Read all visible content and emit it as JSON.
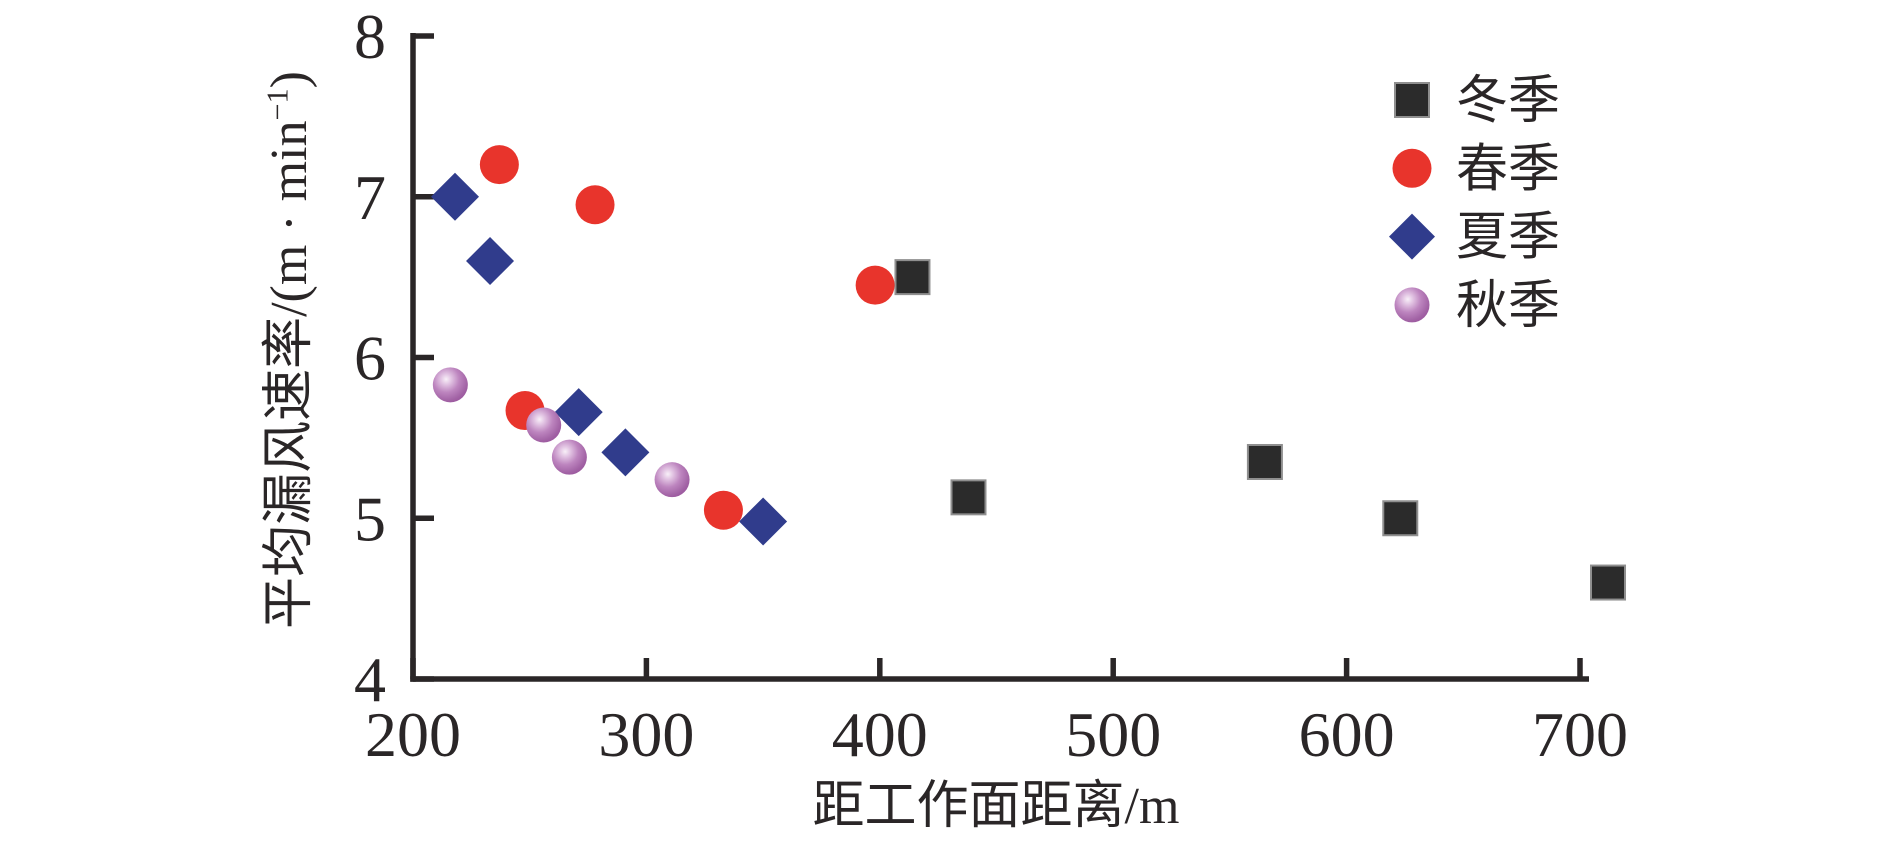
{
  "figure": {
    "background": "#ffffff"
  },
  "chart_data": {
    "type": "scatter",
    "title": "",
    "xlabel": "距工作面距离/m",
    "ylabel": "平均漏风速率/(m · min⁻¹)",
    "ylabel_parts": {
      "pre": "平均漏风速率/(m · min",
      "sup": "−1",
      "post": ")"
    },
    "xlim": [
      200,
      700
    ],
    "ylim": [
      4,
      8
    ],
    "x_ticks": [
      200,
      300,
      400,
      500,
      600,
      700
    ],
    "y_ticks": [
      4,
      5,
      6,
      7,
      8
    ],
    "grid": false,
    "legend_position": "top-right",
    "axis_color": "#2a2627",
    "text_color": "#2a2627",
    "series": [
      {
        "key": "winter",
        "name": "冬季",
        "marker": "square",
        "color": "#2b2b2b",
        "border": "#8f8f8f",
        "points": [
          [
            414,
            6.5
          ],
          [
            438,
            5.13
          ],
          [
            565,
            5.35
          ],
          [
            623,
            5.0
          ],
          [
            712,
            4.6
          ]
        ]
      },
      {
        "key": "spring",
        "name": "春季",
        "marker": "circle",
        "color": "#e8342c",
        "points": [
          [
            237,
            7.2
          ],
          [
            248,
            5.67
          ],
          [
            278,
            6.95
          ],
          [
            333,
            5.05
          ],
          [
            398,
            6.45
          ]
        ]
      },
      {
        "key": "summer",
        "name": "夏季",
        "marker": "diamond",
        "color": "#303c8c",
        "points": [
          [
            218,
            7.0
          ],
          [
            233,
            6.6
          ],
          [
            271,
            5.66
          ],
          [
            291,
            5.41
          ],
          [
            350,
            4.98
          ]
        ]
      },
      {
        "key": "autumn",
        "name": "秋季",
        "marker": "sphere",
        "color": "#a565a8",
        "gradient": [
          "#f8f0f8",
          "#e3c6e4",
          "#bd85bf",
          "#a263a5",
          "#964f99"
        ],
        "points": [
          [
            216,
            5.83
          ],
          [
            256,
            5.58
          ],
          [
            267,
            5.38
          ],
          [
            311,
            5.24
          ]
        ]
      }
    ]
  }
}
